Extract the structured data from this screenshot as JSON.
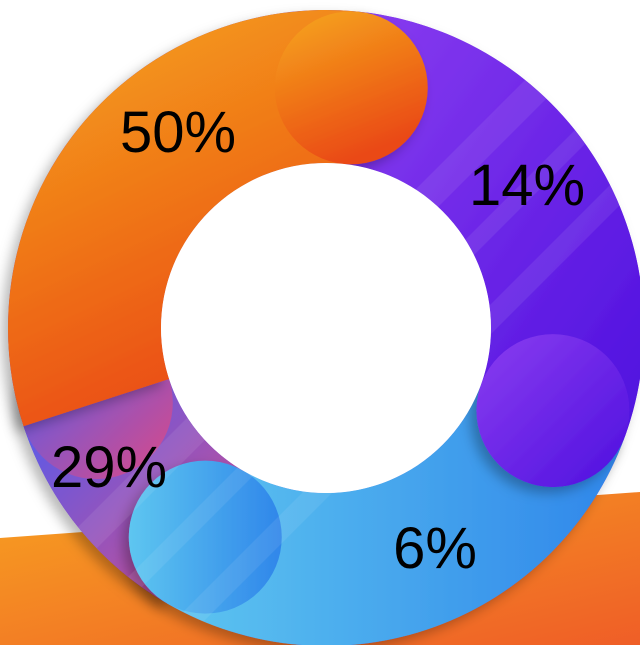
{
  "chart_data": {
    "type": "pie",
    "variant": "donut",
    "title": "",
    "slices": [
      {
        "label": "50%",
        "value": 50,
        "color_start": "#f6a81e",
        "color_end": "#ea4a12"
      },
      {
        "label": "14%",
        "value": 14,
        "color_start": "#8a3df0",
        "color_end": "#4e10df"
      },
      {
        "label": "6%",
        "value": 6,
        "color_start": "#5ec6f0",
        "color_end": "#2f86ea"
      },
      {
        "label": "29%",
        "value": 29,
        "color_start": "#4a5ef5",
        "color_end": "#dc4a86"
      }
    ],
    "legend": "none"
  },
  "colors": {
    "background": "#ffffff",
    "band_start": "#f7a021",
    "band_end": "#ef5e27",
    "hole": "#ffffff"
  }
}
